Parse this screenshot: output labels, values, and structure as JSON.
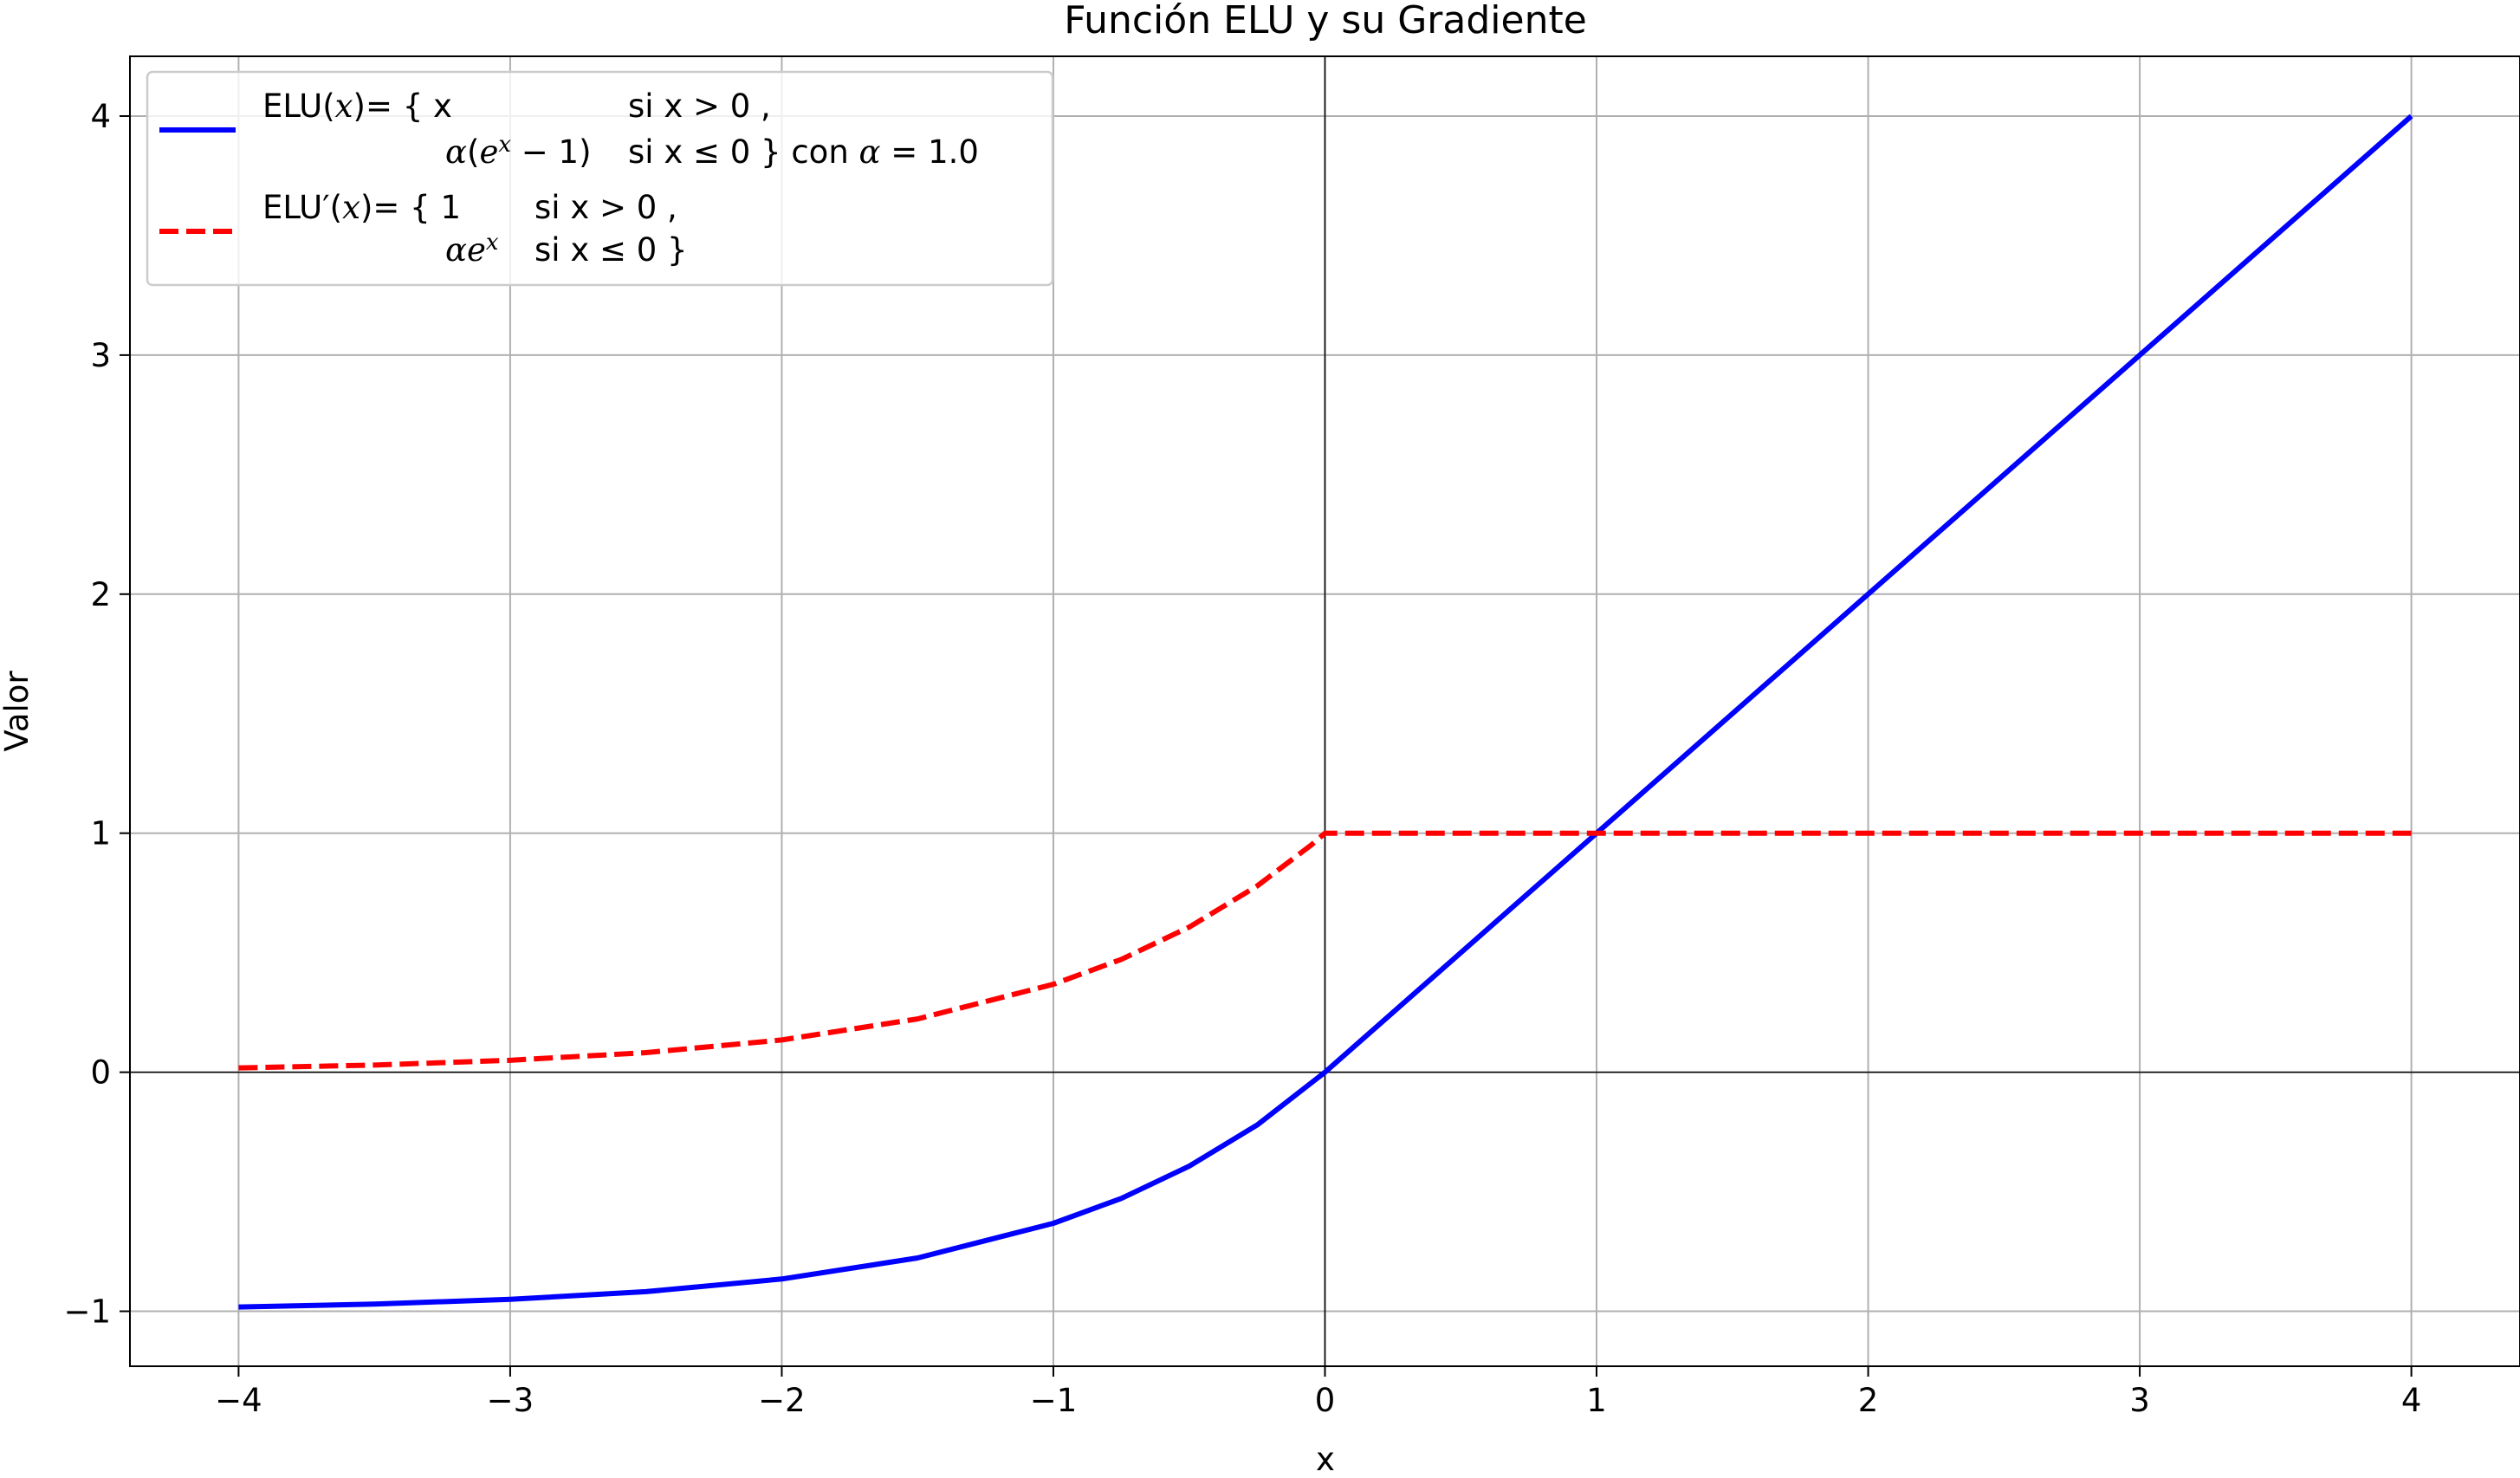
{
  "chart_data": {
    "type": "line",
    "title": "Función ELU y su Gradiente",
    "xlabel": "x",
    "ylabel": "Valor",
    "xlim": [
      -4.4,
      4.4
    ],
    "ylim": [
      -1.23,
      4.25
    ],
    "x_ticks": [
      -4,
      -3,
      -2,
      -1,
      0,
      1,
      2,
      3,
      4
    ],
    "y_ticks": [
      -1,
      0,
      1,
      2,
      3,
      4
    ],
    "x_tick_labels": [
      "−4",
      "−3",
      "−2",
      "−1",
      "0",
      "1",
      "2",
      "3",
      "4"
    ],
    "y_tick_labels": [
      "−1",
      "0",
      "1",
      "2",
      "3",
      "4"
    ],
    "grid": true,
    "reference_lines": {
      "x0": true,
      "y0": true
    },
    "legend_position": "upper-left",
    "alpha": 1.0,
    "series": [
      {
        "key": "elu",
        "name": "ELU(x)= { x si x > 0 , α(eˣ − 1) si x ≤ 0 } con α = 1.0",
        "color": "#0000ff",
        "style": "solid",
        "x": [
          -4,
          -3.5,
          -3,
          -2.5,
          -2,
          -1.5,
          -1,
          -0.75,
          -0.5,
          -0.25,
          0,
          1,
          2,
          3,
          4
        ],
        "y": [
          -0.982,
          -0.97,
          -0.95,
          -0.918,
          -0.865,
          -0.777,
          -0.632,
          -0.528,
          -0.393,
          -0.221,
          0,
          1,
          2,
          3,
          4
        ]
      },
      {
        "key": "grad",
        "name": "ELU′(x)= { 1 si x > 0 , αeˣ si x ≤ 0 }",
        "color": "#ff0000",
        "style": "dashed",
        "x": [
          -4,
          -3.5,
          -3,
          -2.5,
          -2,
          -1.5,
          -1,
          -0.75,
          -0.5,
          -0.25,
          -0.05,
          0,
          0.05,
          1,
          2,
          3,
          4
        ],
        "y": [
          0.018,
          0.03,
          0.05,
          0.082,
          0.135,
          0.223,
          0.368,
          0.472,
          0.607,
          0.779,
          0.951,
          1,
          1,
          1,
          1,
          1,
          1
        ]
      }
    ],
    "legend": {
      "elu": {
        "line1": [
          "ELU(",
          "x",
          ")= { x",
          "si x > 0 ,"
        ],
        "line2": [
          "α",
          "(",
          "e",
          "x",
          " − 1)",
          "si x  ≤  0 } con  ",
          "α",
          " = 1.0"
        ]
      },
      "grad": {
        "line1": [
          "ELU′(",
          "x",
          ")= { 1",
          "si x > 0 ,"
        ],
        "line2": [
          "αe",
          "x",
          "si x  ≤  0  }"
        ]
      }
    }
  }
}
